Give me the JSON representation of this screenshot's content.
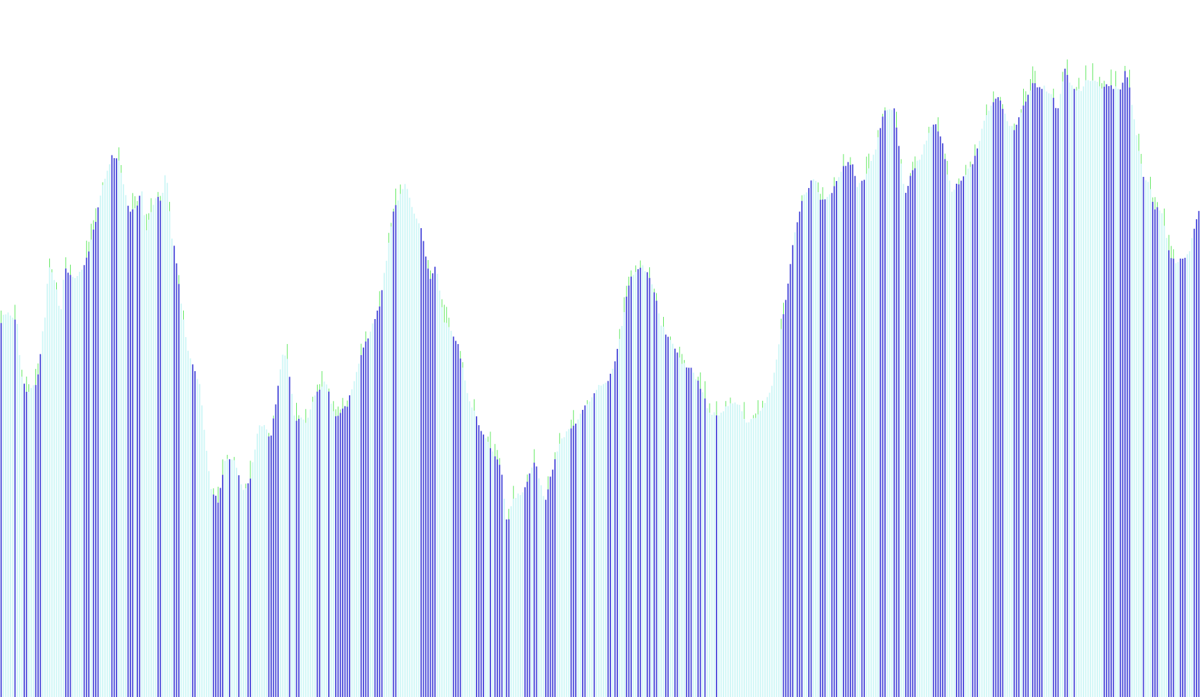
{
  "colors": {
    "background": "#ffffff",
    "bar_light": "#cdf6f6",
    "bar_dark": "#4646d8",
    "wick": "#5ee85e"
  },
  "chart_data": {
    "type": "bar",
    "title": "",
    "xlabel": "",
    "ylabel": "",
    "grid": false,
    "legend": "none",
    "ylim": [
      0,
      1000
    ],
    "bar_count": 520,
    "x_range": [
      0,
      520
    ],
    "level_anchors": [
      [
        0,
        530
      ],
      [
        4,
        545
      ],
      [
        10,
        550
      ],
      [
        14,
        548
      ],
      [
        18,
        545
      ],
      [
        22,
        540
      ],
      [
        28,
        460
      ],
      [
        34,
        438
      ],
      [
        38,
        440
      ],
      [
        44,
        448
      ],
      [
        48,
        450
      ],
      [
        52,
        478
      ],
      [
        54,
        520
      ],
      [
        58,
        538
      ],
      [
        62,
        600
      ],
      [
        64,
        620
      ],
      [
        68,
        605
      ],
      [
        72,
        598
      ],
      [
        76,
        572
      ],
      [
        78,
        542
      ],
      [
        80,
        560
      ],
      [
        84,
        616
      ],
      [
        96,
        598
      ],
      [
        110,
        618
      ],
      [
        120,
        660
      ],
      [
        134,
        734
      ],
      [
        146,
        776
      ],
      [
        154,
        774
      ],
      [
        162,
        728
      ],
      [
        168,
        696
      ],
      [
        178,
        704
      ],
      [
        184,
        732
      ],
      [
        190,
        668
      ],
      [
        196,
        690
      ],
      [
        204,
        720
      ],
      [
        210,
        708
      ],
      [
        216,
        760
      ],
      [
        224,
        656
      ],
      [
        228,
        640
      ],
      [
        238,
        544
      ],
      [
        246,
        490
      ],
      [
        260,
        448
      ],
      [
        274,
        300
      ],
      [
        284,
        280
      ],
      [
        294,
        344
      ],
      [
        304,
        340
      ],
      [
        318,
        294
      ],
      [
        326,
        314
      ],
      [
        336,
        386
      ],
      [
        344,
        390
      ],
      [
        352,
        370
      ],
      [
        368,
        490
      ],
      [
        374,
        484
      ],
      [
        384,
        398
      ],
      [
        390,
        400
      ],
      [
        398,
        394
      ],
      [
        410,
        432
      ],
      [
        424,
        456
      ],
      [
        436,
        400
      ],
      [
        452,
        418
      ],
      [
        470,
        490
      ],
      [
        494,
        560
      ],
      [
        512,
        694
      ],
      [
        520,
        720
      ],
      [
        528,
        738
      ],
      [
        534,
        710
      ],
      [
        548,
        672
      ],
      [
        560,
        600
      ],
      [
        568,
        620
      ],
      [
        578,
        540
      ],
      [
        596,
        508
      ],
      [
        608,
        436
      ],
      [
        628,
        378
      ],
      [
        642,
        352
      ],
      [
        652,
        330
      ],
      [
        660,
        248
      ],
      [
        668,
        282
      ],
      [
        684,
        300
      ],
      [
        696,
        340
      ],
      [
        700,
        320
      ],
      [
        710,
        280
      ],
      [
        718,
        322
      ],
      [
        730,
        370
      ],
      [
        748,
        392
      ],
      [
        764,
        420
      ],
      [
        780,
        448
      ],
      [
        790,
        450
      ],
      [
        800,
        476
      ],
      [
        820,
        600
      ],
      [
        836,
        620
      ],
      [
        850,
        592
      ],
      [
        860,
        536
      ],
      [
        874,
        508
      ],
      [
        888,
        480
      ],
      [
        900,
        470
      ],
      [
        914,
        440
      ],
      [
        922,
        410
      ],
      [
        934,
        404
      ],
      [
        948,
        418
      ],
      [
        962,
        422
      ],
      [
        970,
        394
      ],
      [
        982,
        400
      ],
      [
        990,
        410
      ],
      [
        1006,
        450
      ],
      [
        1016,
        520
      ],
      [
        1024,
        580
      ],
      [
        1034,
        664
      ],
      [
        1046,
        720
      ],
      [
        1054,
        734
      ],
      [
        1060,
        748
      ],
      [
        1064,
        726
      ],
      [
        1070,
        710
      ],
      [
        1080,
        720
      ],
      [
        1090,
        740
      ],
      [
        1096,
        760
      ],
      [
        1102,
        766
      ],
      [
        1110,
        762
      ],
      [
        1116,
        732
      ],
      [
        1126,
        746
      ],
      [
        1140,
        786
      ],
      [
        1150,
        838
      ],
      [
        1164,
        844
      ],
      [
        1178,
        720
      ],
      [
        1186,
        752
      ],
      [
        1198,
        774
      ],
      [
        1210,
        814
      ],
      [
        1216,
        824
      ],
      [
        1226,
        800
      ],
      [
        1232,
        756
      ],
      [
        1240,
        724
      ],
      [
        1246,
        736
      ],
      [
        1254,
        744
      ],
      [
        1268,
        770
      ],
      [
        1272,
        784
      ],
      [
        1282,
        832
      ],
      [
        1296,
        860
      ],
      [
        1302,
        856
      ],
      [
        1312,
        826
      ],
      [
        1320,
        812
      ],
      [
        1330,
        842
      ],
      [
        1344,
        880
      ],
      [
        1360,
        874
      ],
      [
        1370,
        862
      ],
      [
        1376,
        838
      ],
      [
        1386,
        900
      ],
      [
        1396,
        874
      ],
      [
        1406,
        870
      ],
      [
        1416,
        888
      ],
      [
        1426,
        884
      ],
      [
        1434,
        872
      ],
      [
        1440,
        880
      ],
      [
        1448,
        876
      ],
      [
        1460,
        868
      ],
      [
        1464,
        900
      ],
      [
        1470,
        876
      ],
      [
        1480,
        800
      ],
      [
        1488,
        748
      ],
      [
        1496,
        738
      ],
      [
        1502,
        700
      ],
      [
        1508,
        700
      ],
      [
        1514,
        688
      ],
      [
        1522,
        636
      ],
      [
        1530,
        624
      ],
      [
        1540,
        630
      ],
      [
        1548,
        640
      ],
      [
        1556,
        680
      ],
      [
        1562,
        700
      ]
    ],
    "highlighted_ranges": [
      [
        0,
        4
      ],
      [
        9,
        10
      ],
      [
        19,
        20
      ],
      [
        30,
        35
      ],
      [
        45,
        55
      ],
      [
        83,
        92
      ],
      [
        109,
        116
      ],
      [
        121,
        130
      ],
      [
        144,
        154
      ],
      [
        165,
        175
      ],
      [
        176,
        184
      ],
      [
        204,
        210
      ],
      [
        224,
        234
      ],
      [
        248,
        256
      ],
      [
        276,
        291
      ],
      [
        297,
        301
      ],
      [
        308,
        313
      ],
      [
        322,
        326
      ],
      [
        347,
        362
      ],
      [
        374,
        378
      ],
      [
        384,
        390
      ],
      [
        412,
        417
      ],
      [
        426,
        431
      ],
      [
        436,
        458
      ],
      [
        470,
        482
      ],
      [
        488,
        498
      ],
      [
        511,
        517
      ],
      [
        546,
        558
      ],
      [
        559,
        569
      ],
      [
        588,
        600
      ],
      [
        618,
        632
      ],
      [
        636,
        640
      ],
      [
        642,
        654
      ],
      [
        657,
        664
      ],
      [
        683,
        692
      ],
      [
        695,
        699
      ],
      [
        708,
        725
      ],
      [
        741,
        750
      ],
      [
        758,
        764
      ],
      [
        771,
        776
      ],
      [
        789,
        796
      ],
      [
        799,
        806
      ],
      [
        814,
        822
      ],
      [
        828,
        834
      ],
      [
        842,
        846
      ],
      [
        850,
        856
      ],
      [
        864,
        872
      ],
      [
        877,
        884
      ],
      [
        893,
        900
      ],
      [
        906,
        912
      ],
      [
        915,
        919
      ],
      [
        925,
        926
      ],
      [
        930,
        933
      ],
      [
        1018,
        1032
      ],
      [
        1036,
        1046
      ],
      [
        1051,
        1057
      ],
      [
        1066,
        1074
      ],
      [
        1082,
        1090
      ],
      [
        1097,
        1114
      ],
      [
        1121,
        1126
      ],
      [
        1144,
        1154
      ],
      [
        1163,
        1170
      ],
      [
        1177,
        1193
      ],
      [
        1215,
        1231
      ],
      [
        1245,
        1255
      ],
      [
        1264,
        1275
      ],
      [
        1291,
        1307
      ],
      [
        1320,
        1328
      ],
      [
        1331,
        1340
      ],
      [
        1342,
        1358
      ],
      [
        1369,
        1378
      ],
      [
        1385,
        1390
      ],
      [
        1398,
        1401
      ],
      [
        1437,
        1450
      ],
      [
        1458,
        1468
      ],
      [
        1470,
        1473
      ],
      [
        1477,
        1479
      ],
      [
        1487,
        1491
      ],
      [
        1498,
        1508
      ],
      [
        1521,
        1528
      ],
      [
        1535,
        1545
      ],
      [
        1553,
        1564
      ]
    ]
  }
}
